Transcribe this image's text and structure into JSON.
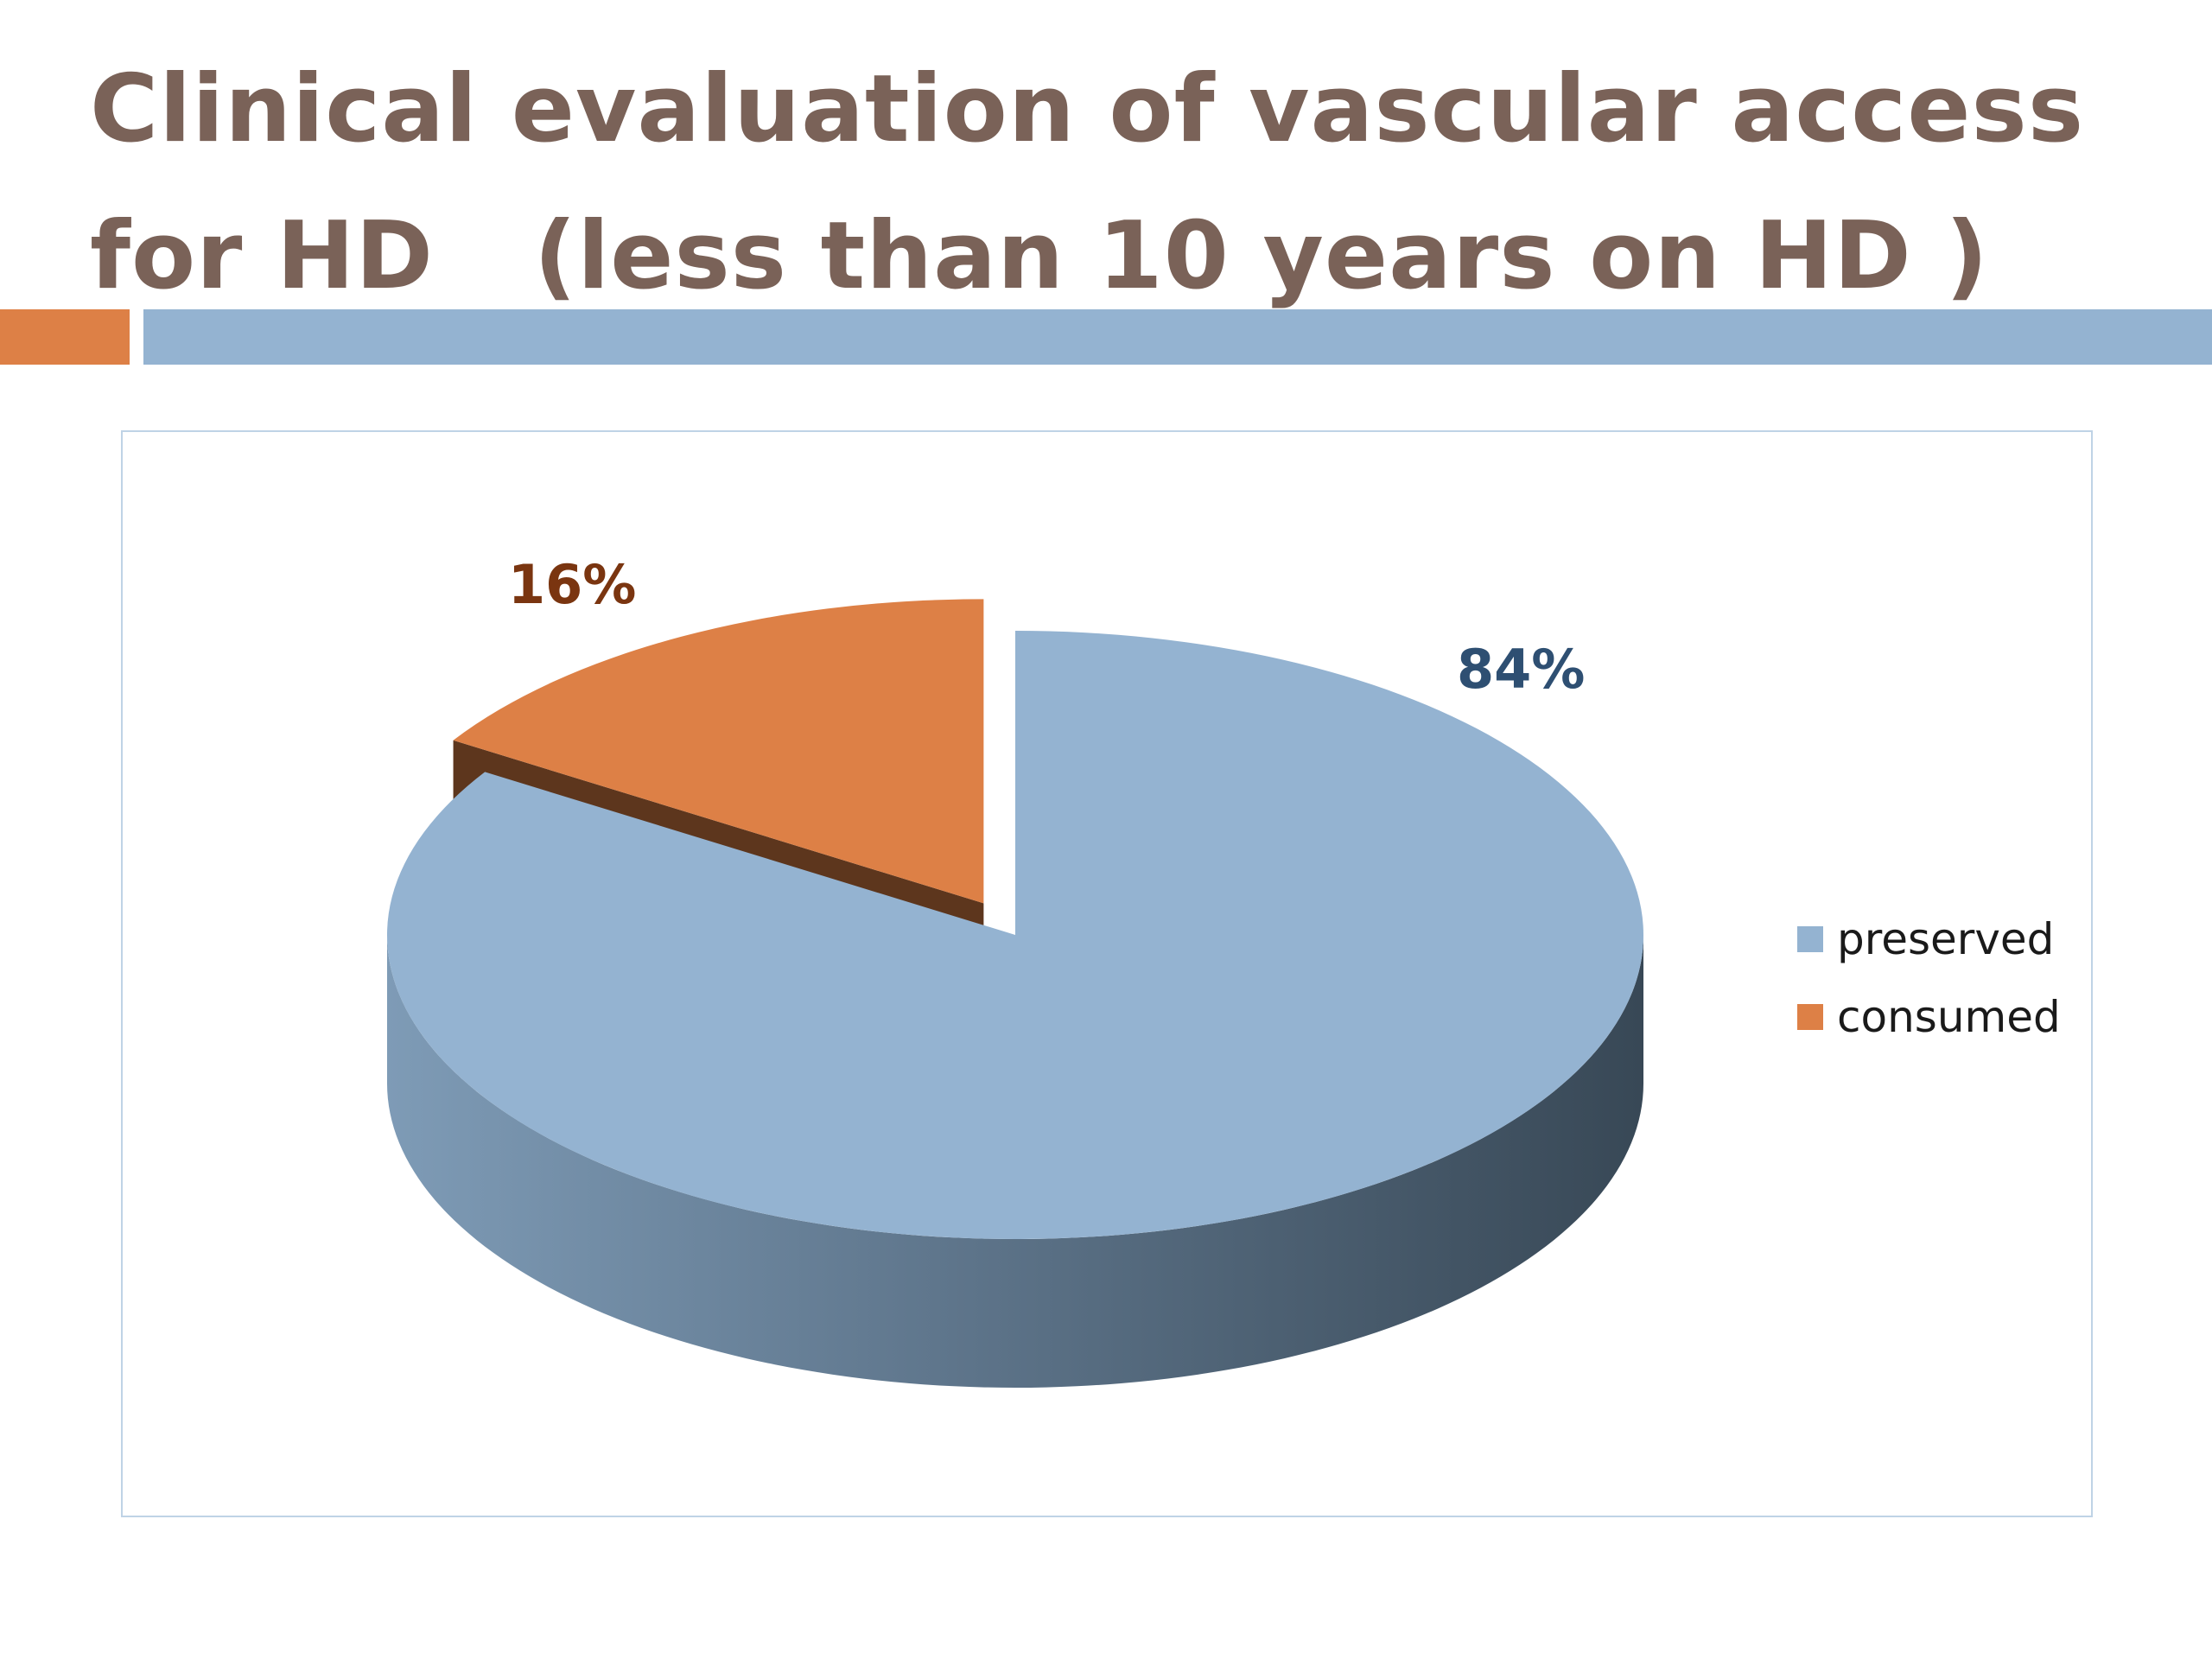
{
  "title": {
    "line1": "Clinical evaluation of vascular access",
    "line2": "for HD   (less than 10 years on HD )"
  },
  "colors": {
    "title": "#7a6258",
    "accent_orange": "#dd8046",
    "accent_blue": "#94b3d1",
    "preserved": "#94b3d1",
    "consumed": "#dd8046",
    "label_preserved": "#2e4f72",
    "label_consumed": "#7a3510"
  },
  "chart_data": {
    "type": "pie",
    "style": "3d-exploded",
    "categories": [
      "preserved",
      "consumed"
    ],
    "values": [
      84,
      16
    ],
    "data_labels": [
      "84%",
      "16%"
    ],
    "legend_position": "right"
  }
}
